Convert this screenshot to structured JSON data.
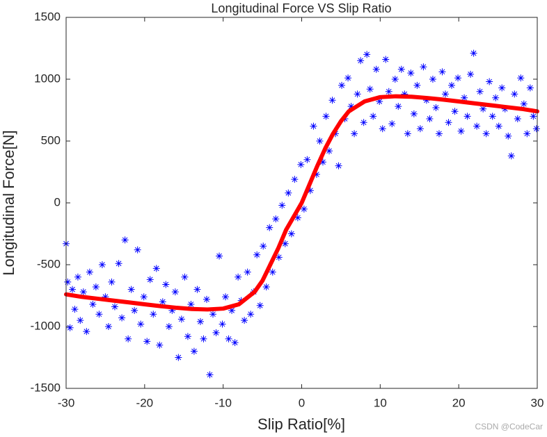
{
  "chart_data": {
    "type": "scatter",
    "title": "Longitudinal Force VS Slip Ratio",
    "xlabel": "Slip Ratio[%]",
    "ylabel": "Longitudinal Force[N]",
    "watermark": "CSDN @CodeCar",
    "xlim": [
      -30,
      30
    ],
    "xticks": [
      -30,
      -20,
      -10,
      0,
      10,
      20,
      30
    ],
    "ylim": [
      -1500,
      1500
    ],
    "yticks": [
      -1500,
      -1000,
      -500,
      0,
      500,
      1000,
      1500
    ],
    "grid": false,
    "series": [
      {
        "type": "scatter",
        "color": "#0000ff",
        "x": [
          -30,
          -29.8,
          -29.5,
          -29.2,
          -28.9,
          -28.5,
          -28.2,
          -27.8,
          -27.4,
          -27,
          -26.6,
          -26.2,
          -25.8,
          -25.4,
          -25,
          -24.6,
          -24.2,
          -23.8,
          -23.3,
          -22.9,
          -22.5,
          -22.1,
          -21.7,
          -21.3,
          -20.9,
          -20.5,
          -20.1,
          -19.7,
          -19.3,
          -18.9,
          -18.5,
          -18.1,
          -17.7,
          -17.3,
          -16.9,
          -16.5,
          -16.1,
          -15.7,
          -15.3,
          -14.9,
          -14.5,
          -14.1,
          -13.7,
          -13.3,
          -12.9,
          -12.5,
          -12.1,
          -11.7,
          -11.3,
          -10.9,
          -10.5,
          -10.1,
          -9.7,
          -9.3,
          -8.9,
          -8.5,
          -8.1,
          -7.7,
          -7.3,
          -6.9,
          -6.5,
          -6.1,
          -5.7,
          -5.3,
          -4.9,
          -4.5,
          -4.1,
          -3.7,
          -3.3,
          -2.9,
          -2.5,
          -2.1,
          -1.7,
          -1.3,
          -0.9,
          -0.5,
          -0.1,
          0.3,
          0.7,
          1.1,
          1.5,
          1.9,
          2.3,
          2.7,
          3.1,
          3.5,
          3.9,
          4.3,
          4.7,
          5.1,
          5.5,
          5.9,
          6.3,
          6.7,
          7.1,
          7.5,
          7.9,
          8.3,
          8.7,
          9.1,
          9.5,
          9.9,
          10.3,
          10.7,
          11.1,
          11.5,
          11.9,
          12.3,
          12.7,
          13.1,
          13.5,
          13.9,
          14.3,
          14.7,
          15.1,
          15.5,
          15.9,
          16.3,
          16.7,
          17.1,
          17.5,
          17.9,
          18.3,
          18.7,
          19.1,
          19.5,
          19.9,
          20.3,
          20.7,
          21.1,
          21.5,
          21.9,
          22.3,
          22.7,
          23.1,
          23.5,
          23.9,
          24.3,
          24.7,
          25.1,
          25.5,
          25.9,
          26.3,
          26.7,
          27.1,
          27.5,
          27.9,
          28.3,
          28.7,
          29.1,
          29.5,
          29.9
        ],
        "values": [
          -330,
          -640,
          -1010,
          -700,
          -860,
          -600,
          -950,
          -720,
          -1040,
          -560,
          -820,
          -680,
          -900,
          -500,
          -760,
          -1000,
          -640,
          -840,
          -490,
          -930,
          -300,
          -1100,
          -700,
          -870,
          -380,
          -980,
          -760,
          -1120,
          -620,
          -900,
          -530,
          -1150,
          -800,
          -660,
          -1000,
          -870,
          -720,
          -1250,
          -940,
          -600,
          -1080,
          -820,
          -1200,
          -700,
          -960,
          -1100,
          -780,
          -1390,
          -900,
          -1050,
          -430,
          -980,
          -760,
          -1100,
          -870,
          -1130,
          -600,
          -790,
          -950,
          -560,
          -900,
          -720,
          -420,
          -830,
          -350,
          -680,
          -200,
          -560,
          -130,
          -440,
          -20,
          -330,
          80,
          -250,
          190,
          -120,
          310,
          -50,
          350,
          100,
          620,
          230,
          500,
          330,
          700,
          420,
          830,
          560,
          300,
          950,
          680,
          1010,
          780,
          560,
          880,
          1150,
          650,
          1200,
          920,
          700,
          1080,
          820,
          600,
          1160,
          900,
          640,
          1000,
          780,
          1080,
          880,
          560,
          1050,
          720,
          950,
          600,
          1100,
          830,
          680,
          1000,
          770,
          560,
          1060,
          880,
          650,
          950,
          740,
          1010,
          580,
          850,
          700,
          1040,
          1210,
          620,
          900,
          760,
          560,
          980,
          700,
          850,
          620,
          930,
          760,
          540,
          380,
          880,
          680,
          1010,
          800,
          560,
          930,
          700,
          600
        ]
      },
      {
        "type": "line",
        "color": "#ff0000",
        "x": [
          -30,
          -28,
          -26,
          -24,
          -22,
          -20,
          -18,
          -16,
          -14,
          -12,
          -10,
          -8,
          -6,
          -5,
          -4,
          -3,
          -2,
          -1,
          0,
          1,
          2,
          3,
          4,
          5,
          6,
          8,
          10,
          12,
          14,
          16,
          18,
          20,
          22,
          24,
          26,
          28,
          30
        ],
        "values": [
          -740,
          -760,
          -775,
          -790,
          -805,
          -820,
          -835,
          -848,
          -858,
          -862,
          -855,
          -820,
          -720,
          -630,
          -500,
          -370,
          -220,
          -110,
          0,
          150,
          300,
          440,
          560,
          660,
          740,
          820,
          855,
          862,
          858,
          848,
          835,
          820,
          805,
          790,
          775,
          760,
          740
        ]
      }
    ]
  }
}
